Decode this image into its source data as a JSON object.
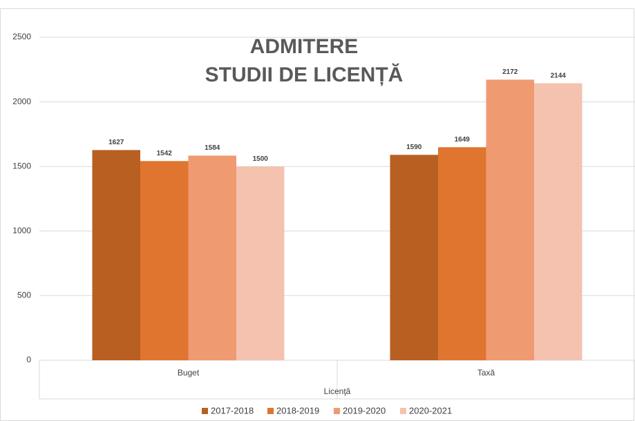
{
  "chart_data": {
    "type": "bar",
    "title": [
      "ADMITERE",
      "STUDII DE LICENȚĂ"
    ],
    "x_label": "Licenţă",
    "categories": [
      "Buget",
      "Taxă"
    ],
    "series": [
      {
        "name": "2017-2018",
        "color": "#b85f22",
        "values": [
          1627,
          1590
        ]
      },
      {
        "name": "2018-2019",
        "color": "#e07530",
        "values": [
          1542,
          1649
        ]
      },
      {
        "name": "2019-2020",
        "color": "#f09a72",
        "values": [
          1584,
          2172
        ]
      },
      {
        "name": "2020-2021",
        "color": "#f5c2b0",
        "values": [
          1500,
          2144
        ]
      }
    ],
    "ylim": [
      0,
      2500
    ],
    "yticks": [
      0,
      500,
      1000,
      1500,
      2000,
      2500
    ],
    "grid": true,
    "legend": "bottom"
  }
}
